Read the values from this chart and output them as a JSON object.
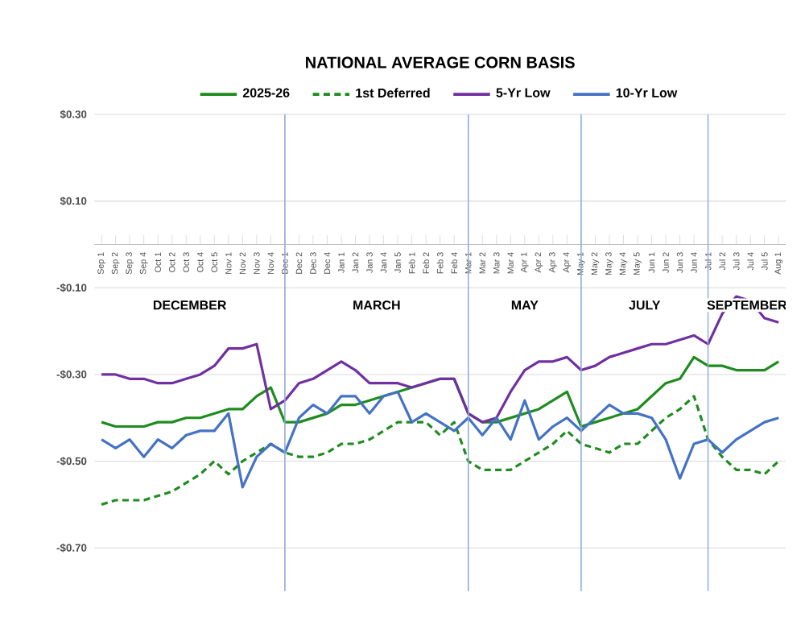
{
  "chart_data": {
    "type": "line",
    "title": "NATIONAL AVERAGE CORN BASIS",
    "categories": [
      "Sep 1",
      "Sep 2",
      "Sep 3",
      "Sep 4",
      "Oct 1",
      "Oct 2",
      "Oct 3",
      "Oct 4",
      "Oct 5",
      "Nov 1",
      "Nov 2",
      "Nov 3",
      "Nov 4",
      "Dec 1",
      "Dec 2",
      "Dec 3",
      "Dec 4",
      "Jan 1",
      "Jan 2",
      "Jan 3",
      "Jan 4",
      "Jan 5",
      "Feb 1",
      "Feb 2",
      "Feb 3",
      "Feb 4",
      "Mar 1",
      "Mar 2",
      "Mar 3",
      "Mar 4",
      "Apr 1",
      "Apr 2",
      "Apr 3",
      "Apr 4",
      "May 1",
      "May 2",
      "May 3",
      "May 4",
      "May 5",
      "Jun 1",
      "Jun 2",
      "Jun 3",
      "Jun 4",
      "Jul 1",
      "Jul 2",
      "Jul 3",
      "Jul 4",
      "Jul 5",
      "Aug 1"
    ],
    "series": [
      {
        "name": "2025-26",
        "color": "#1e8c1e",
        "line_style": "solid",
        "values": [
          -0.41,
          -0.42,
          -0.42,
          -0.42,
          -0.41,
          -0.41,
          -0.4,
          -0.4,
          -0.39,
          -0.38,
          -0.38,
          -0.35,
          -0.33,
          -0.41,
          -0.41,
          -0.4,
          -0.39,
          -0.37,
          -0.37,
          -0.36,
          -0.35,
          -0.34,
          -0.33,
          -0.32,
          -0.31,
          -0.31,
          -0.39,
          -0.41,
          -0.41,
          -0.4,
          -0.39,
          -0.38,
          -0.36,
          -0.34,
          -0.42,
          -0.41,
          -0.4,
          -0.39,
          -0.38,
          -0.35,
          -0.32,
          -0.31,
          -0.26,
          -0.28,
          -0.28,
          -0.29,
          -0.29,
          -0.29,
          -0.27
        ]
      },
      {
        "name": "1st Deferred",
        "color": "#1e8c1e",
        "line_style": "dashed",
        "values": [
          -0.6,
          -0.59,
          -0.59,
          -0.59,
          -0.58,
          -0.57,
          -0.55,
          -0.53,
          -0.5,
          -0.53,
          -0.5,
          -0.48,
          -0.46,
          -0.48,
          -0.49,
          -0.49,
          -0.48,
          -0.46,
          -0.46,
          -0.45,
          -0.43,
          -0.41,
          -0.41,
          -0.41,
          -0.44,
          -0.41,
          -0.5,
          -0.52,
          -0.52,
          -0.52,
          -0.5,
          -0.48,
          -0.46,
          -0.43,
          -0.46,
          -0.47,
          -0.48,
          -0.46,
          -0.46,
          -0.43,
          -0.4,
          -0.38,
          -0.35,
          -0.45,
          -0.49,
          -0.52,
          -0.52,
          -0.53,
          -0.5
        ]
      },
      {
        "name": "5-Yr Low",
        "color": "#7030a0",
        "line_style": "solid",
        "values": [
          -0.3,
          -0.3,
          -0.31,
          -0.31,
          -0.32,
          -0.32,
          -0.31,
          -0.3,
          -0.28,
          -0.24,
          -0.24,
          -0.23,
          -0.38,
          -0.36,
          -0.32,
          -0.31,
          -0.29,
          -0.27,
          -0.29,
          -0.32,
          -0.32,
          -0.32,
          -0.33,
          -0.32,
          -0.31,
          -0.31,
          -0.39,
          -0.41,
          -0.4,
          -0.34,
          -0.29,
          -0.27,
          -0.27,
          -0.26,
          -0.29,
          -0.28,
          -0.26,
          -0.25,
          -0.24,
          -0.23,
          -0.23,
          -0.22,
          -0.21,
          -0.23,
          -0.16,
          -0.12,
          -0.13,
          -0.17,
          -0.18
        ]
      },
      {
        "name": "10-Yr Low",
        "color": "#4472c4",
        "line_style": "solid",
        "values": [
          -0.45,
          -0.47,
          -0.45,
          -0.49,
          -0.45,
          -0.47,
          -0.44,
          -0.43,
          -0.43,
          -0.39,
          -0.56,
          -0.49,
          -0.46,
          -0.48,
          -0.4,
          -0.37,
          -0.39,
          -0.35,
          -0.35,
          -0.39,
          -0.35,
          -0.34,
          -0.41,
          -0.39,
          -0.41,
          -0.43,
          -0.4,
          -0.44,
          -0.4,
          -0.45,
          -0.36,
          -0.45,
          -0.42,
          -0.4,
          -0.43,
          -0.4,
          -0.37,
          -0.39,
          -0.39,
          -0.4,
          -0.45,
          -0.54,
          -0.46,
          -0.45,
          -0.48,
          -0.45,
          -0.43,
          -0.41,
          -0.4
        ]
      }
    ],
    "ylim": [
      -0.8,
      0.3
    ],
    "yticks": [
      {
        "value": 0.3,
        "label": "$0.30"
      },
      {
        "value": 0.1,
        "label": "$0.10"
      },
      {
        "value": -0.1,
        "label": "-$0.10"
      },
      {
        "value": -0.3,
        "label": "-$0.30"
      },
      {
        "value": -0.5,
        "label": "-$0.50"
      },
      {
        "value": -0.7,
        "label": "-$0.70"
      }
    ],
    "grid": "y",
    "legend": "top",
    "ref_lines": [
      {
        "axis": "x",
        "value": "Dec 1",
        "color": "#8eaadb"
      },
      {
        "axis": "x",
        "value": "Mar 1",
        "color": "#8eaadb"
      },
      {
        "axis": "x",
        "value": "May 1",
        "color": "#8eaadb"
      },
      {
        "axis": "x",
        "value": "Jul 1",
        "color": "#8eaadb"
      }
    ],
    "annotations": [
      "DECEMBER",
      "MARCH",
      "MAY",
      "JULY",
      "SEPTEMBER"
    ]
  }
}
